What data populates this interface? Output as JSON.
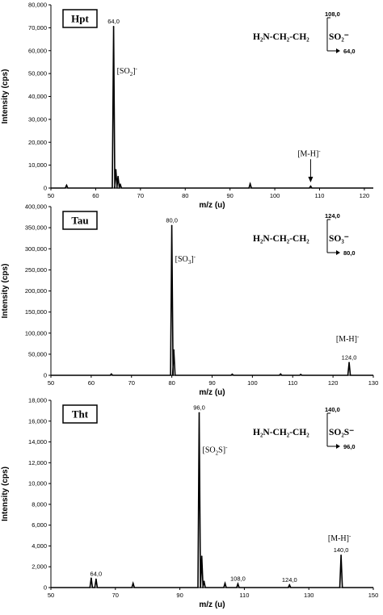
{
  "chart_data": [
    {
      "type": "line",
      "label": "Hpt",
      "xlabel": "m/z (u)",
      "ylabel": "Intensity (cps)",
      "xlim": [
        50,
        122
      ],
      "ylim": [
        0,
        80000
      ],
      "xticks": [
        50,
        60,
        70,
        80,
        90,
        100,
        110,
        120
      ],
      "yticks": [
        0,
        10000,
        20000,
        30000,
        40000,
        50000,
        60000,
        70000,
        80000
      ],
      "ytick_labels": [
        "0",
        "10,000",
        "20,000",
        "30,000",
        "40,000",
        "50,000",
        "60,000",
        "70,000",
        "80,000"
      ],
      "peaks": [
        {
          "x": 53.5,
          "y": 1200
        },
        {
          "x": 64.0,
          "y": 70500
        },
        {
          "x": 64.5,
          "y": 8000
        },
        {
          "x": 65.0,
          "y": 5000
        },
        {
          "x": 65.5,
          "y": 1500
        },
        {
          "x": 94.5,
          "y": 1800
        },
        {
          "x": 108.0,
          "y": 800
        }
      ],
      "peak_labels": [
        {
          "x": 64.0,
          "y": 70500,
          "text": "64,0"
        }
      ],
      "annotations": [
        {
          "x": 64.0,
          "y": 50000,
          "text": "[SO",
          "sub": "2",
          "sup": "-"
        },
        {
          "x": 108.0,
          "y": 14000,
          "text": "[M-H]",
          "sup": "-"
        }
      ],
      "structure": {
        "main": "H₂N-CH₂-CH₂",
        "group": "SO₂⁻",
        "parent": "108,0",
        "fragment": "64,0"
      }
    },
    {
      "type": "line",
      "label": "Tau",
      "xlabel": "m/z (u)",
      "ylabel": "Intensity (cps)",
      "xlim": [
        50,
        130
      ],
      "ylim": [
        0,
        400000
      ],
      "xticks": [
        50,
        60,
        70,
        80,
        90,
        100,
        110,
        120,
        130
      ],
      "yticks": [
        0,
        50000,
        100000,
        150000,
        200000,
        250000,
        300000,
        350000,
        400000
      ],
      "ytick_labels": [
        "0",
        "50,000",
        "100,000",
        "150,000",
        "200,000",
        "250,000",
        "300,000",
        "350,000",
        "400,000"
      ],
      "peaks": [
        {
          "x": 65.0,
          "y": 3000
        },
        {
          "x": 80.0,
          "y": 355000
        },
        {
          "x": 80.5,
          "y": 60000
        },
        {
          "x": 95.0,
          "y": 2500
        },
        {
          "x": 107.0,
          "y": 3000
        },
        {
          "x": 112.0,
          "y": 2000
        },
        {
          "x": 124.0,
          "y": 30000
        }
      ],
      "peak_labels": [
        {
          "x": 80.0,
          "y": 355000,
          "text": "80,0"
        },
        {
          "x": 124.0,
          "y": 30000,
          "text": "124,0"
        }
      ],
      "annotations": [
        {
          "x": 80.0,
          "y": 270000,
          "text": "[SO",
          "sub": "3",
          "sup": "-"
        },
        {
          "x": 124.0,
          "y": 80000,
          "text": "[M-H]",
          "sup": "-"
        }
      ],
      "structure": {
        "main": "H₂N-CH₂-CH₂",
        "group": "SO₃⁻",
        "parent": "124,0",
        "fragment": "80,0"
      }
    },
    {
      "type": "line",
      "label": "Tht",
      "xlabel": "m/z (u)",
      "ylabel": "Intensity (cps)",
      "xlim": [
        50,
        150
      ],
      "ylim": [
        0,
        18000
      ],
      "xticks": [
        50,
        70,
        90,
        110,
        130,
        150
      ],
      "yticks": [
        0,
        2000,
        4000,
        6000,
        8000,
        10000,
        12000,
        14000,
        16000,
        18000
      ],
      "ytick_labels": [
        "0",
        "2,000",
        "4,000",
        "6,000",
        "8,000",
        "10,000",
        "12,000",
        "14,000",
        "16,000",
        "18,000"
      ],
      "peaks": [
        {
          "x": 62.5,
          "y": 900
        },
        {
          "x": 64.0,
          "y": 800
        },
        {
          "x": 75.5,
          "y": 400
        },
        {
          "x": 96.0,
          "y": 16800
        },
        {
          "x": 96.8,
          "y": 3000
        },
        {
          "x": 97.5,
          "y": 600
        },
        {
          "x": 104.0,
          "y": 400
        },
        {
          "x": 108.0,
          "y": 350
        },
        {
          "x": 124.0,
          "y": 250
        },
        {
          "x": 140.0,
          "y": 3100
        }
      ],
      "peak_labels": [
        {
          "x": 96.0,
          "y": 16800,
          "text": "96,0"
        },
        {
          "x": 64.0,
          "y": 800,
          "text": "64,0"
        },
        {
          "x": 108.0,
          "y": 350,
          "text": "108,0"
        },
        {
          "x": 124.0,
          "y": 250,
          "text": "124,0"
        },
        {
          "x": 140.0,
          "y": 3100,
          "text": "140,0"
        }
      ],
      "annotations": [
        {
          "x": 96.0,
          "y": 13000,
          "text": "[SO",
          "sub": "2",
          "after": "S]",
          "sup": "-"
        },
        {
          "x": 140.0,
          "y": 4500,
          "text": "[M-H]",
          "sup": "-"
        }
      ],
      "structure": {
        "main": "H₂N-CH₂-CH₂",
        "group": "SO₂S⁻",
        "parent": "140,0",
        "fragment": "96,0"
      }
    }
  ]
}
